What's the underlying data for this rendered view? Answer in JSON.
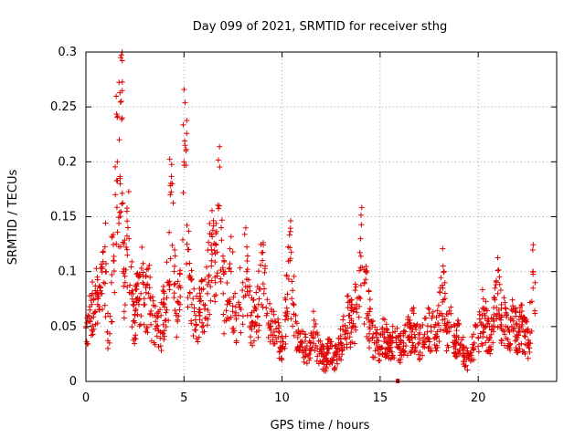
{
  "chart_data": {
    "type": "scatter",
    "title": "Day 099 of 2021, SRMTID for receiver sthg",
    "xlabel": "GPS time / hours",
    "ylabel": "SRMTID / TECUs",
    "xlim": [
      0,
      24
    ],
    "ylim": [
      0,
      0.3
    ],
    "xticks": [
      0,
      5,
      10,
      15,
      20
    ],
    "xtick_labels": [
      "0",
      "5",
      "10",
      "15",
      "20"
    ],
    "yticks": [
      0,
      0.05,
      0.1,
      0.15,
      0.2,
      0.25,
      0.3
    ],
    "ytick_labels": [
      "0",
      "0.05",
      "0.1",
      "0.15",
      "0.2",
      "0.25",
      "0.3"
    ],
    "grid": true,
    "series": [
      {
        "name": "SRMTID",
        "color": "#e00000",
        "marker": "plus",
        "x": [
          0.0,
          0.1,
          0.2,
          0.3,
          0.4,
          0.5,
          0.6,
          0.7,
          0.8,
          0.9,
          1.0,
          1.1,
          1.2,
          1.3,
          1.4,
          1.5,
          1.6,
          1.7,
          1.75,
          1.8,
          1.85,
          1.9,
          2.0,
          2.1,
          2.2,
          2.3,
          2.4,
          2.5,
          2.6,
          2.7,
          2.8,
          2.9,
          3.0,
          3.2,
          3.4,
          3.6,
          3.8,
          4.0,
          4.2,
          4.3,
          4.4,
          4.5,
          4.6,
          4.8,
          5.0,
          5.05,
          5.1,
          5.2,
          5.3,
          5.4,
          5.6,
          5.8,
          6.0,
          6.2,
          6.4,
          6.6,
          6.8,
          6.9,
          7.0,
          7.2,
          7.4,
          7.6,
          7.8,
          8.0,
          8.2,
          8.4,
          8.6,
          8.8,
          9.0,
          9.2,
          9.4,
          9.6,
          9.8,
          10.0,
          10.2,
          10.4,
          10.6,
          10.8,
          11.0,
          11.2,
          11.4,
          11.6,
          11.8,
          12.0,
          12.2,
          12.4,
          12.6,
          12.8,
          13.0,
          13.2,
          13.4,
          13.6,
          13.8,
          14.0,
          14.2,
          14.4,
          14.6,
          14.8,
          15.0,
          15.2,
          15.4,
          15.6,
          15.8,
          16.0,
          16.2,
          16.4,
          16.6,
          16.8,
          17.0,
          17.2,
          17.4,
          17.6,
          17.8,
          18.0,
          18.2,
          18.4,
          18.6,
          18.8,
          19.0,
          19.2,
          19.4,
          19.6,
          19.8,
          20.0,
          20.2,
          20.4,
          20.6,
          20.8,
          21.0,
          21.2,
          21.4,
          21.6,
          21.8,
          22.0,
          22.2,
          22.4,
          22.6,
          22.8,
          22.9
        ],
        "y": [
          0.05,
          0.06,
          0.065,
          0.07,
          0.075,
          0.08,
          0.07,
          0.065,
          0.08,
          0.09,
          0.1,
          0.045,
          0.035,
          0.09,
          0.11,
          0.17,
          0.2,
          0.22,
          0.18,
          0.255,
          0.24,
          0.1,
          0.09,
          0.12,
          0.13,
          0.08,
          0.07,
          0.06,
          0.075,
          0.07,
          0.08,
          0.09,
          0.07,
          0.08,
          0.06,
          0.05,
          0.045,
          0.07,
          0.09,
          0.17,
          0.18,
          0.1,
          0.06,
          0.07,
          0.2,
          0.215,
          0.21,
          0.12,
          0.08,
          0.07,
          0.06,
          0.06,
          0.07,
          0.08,
          0.12,
          0.09,
          0.16,
          0.14,
          0.08,
          0.07,
          0.1,
          0.06,
          0.07,
          0.09,
          0.1,
          0.06,
          0.05,
          0.07,
          0.11,
          0.06,
          0.05,
          0.045,
          0.04,
          0.03,
          0.06,
          0.11,
          0.07,
          0.04,
          0.035,
          0.03,
          0.025,
          0.045,
          0.03,
          0.025,
          0.02,
          0.03,
          0.02,
          0.025,
          0.035,
          0.045,
          0.06,
          0.05,
          0.07,
          0.13,
          0.09,
          0.06,
          0.04,
          0.035,
          0.03,
          0.045,
          0.03,
          0.035,
          0.04,
          0.03,
          0.035,
          0.04,
          0.045,
          0.05,
          0.035,
          0.04,
          0.045,
          0.05,
          0.04,
          0.06,
          0.085,
          0.045,
          0.05,
          0.035,
          0.04,
          0.03,
          0.02,
          0.025,
          0.035,
          0.04,
          0.06,
          0.05,
          0.04,
          0.055,
          0.08,
          0.06,
          0.05,
          0.045,
          0.055,
          0.04,
          0.05,
          0.045,
          0.035,
          0.1,
          0.09
        ]
      }
    ],
    "marker_bottom": {
      "x": 15.9,
      "y": 0
    }
  }
}
